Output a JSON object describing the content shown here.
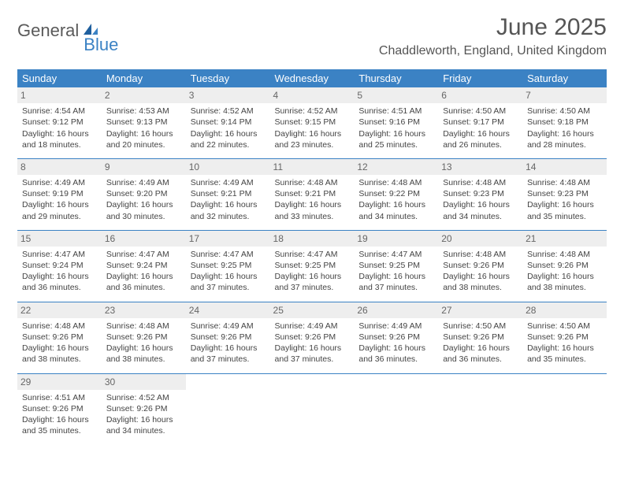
{
  "brand": {
    "general": "General",
    "blue": "Blue"
  },
  "title": "June 2025",
  "location": "Chaddleworth, England, United Kingdom",
  "colors": {
    "header_bg": "#3b82c4",
    "header_text": "#ffffff",
    "daynum_bg": "#eeeeee",
    "border": "#3b82c4",
    "text": "#444444"
  },
  "day_names": [
    "Sunday",
    "Monday",
    "Tuesday",
    "Wednesday",
    "Thursday",
    "Friday",
    "Saturday"
  ],
  "weeks": [
    [
      {
        "n": "1",
        "sr": "Sunrise: 4:54 AM",
        "ss": "Sunset: 9:12 PM",
        "d1": "Daylight: 16 hours",
        "d2": "and 18 minutes."
      },
      {
        "n": "2",
        "sr": "Sunrise: 4:53 AM",
        "ss": "Sunset: 9:13 PM",
        "d1": "Daylight: 16 hours",
        "d2": "and 20 minutes."
      },
      {
        "n": "3",
        "sr": "Sunrise: 4:52 AM",
        "ss": "Sunset: 9:14 PM",
        "d1": "Daylight: 16 hours",
        "d2": "and 22 minutes."
      },
      {
        "n": "4",
        "sr": "Sunrise: 4:52 AM",
        "ss": "Sunset: 9:15 PM",
        "d1": "Daylight: 16 hours",
        "d2": "and 23 minutes."
      },
      {
        "n": "5",
        "sr": "Sunrise: 4:51 AM",
        "ss": "Sunset: 9:16 PM",
        "d1": "Daylight: 16 hours",
        "d2": "and 25 minutes."
      },
      {
        "n": "6",
        "sr": "Sunrise: 4:50 AM",
        "ss": "Sunset: 9:17 PM",
        "d1": "Daylight: 16 hours",
        "d2": "and 26 minutes."
      },
      {
        "n": "7",
        "sr": "Sunrise: 4:50 AM",
        "ss": "Sunset: 9:18 PM",
        "d1": "Daylight: 16 hours",
        "d2": "and 28 minutes."
      }
    ],
    [
      {
        "n": "8",
        "sr": "Sunrise: 4:49 AM",
        "ss": "Sunset: 9:19 PM",
        "d1": "Daylight: 16 hours",
        "d2": "and 29 minutes."
      },
      {
        "n": "9",
        "sr": "Sunrise: 4:49 AM",
        "ss": "Sunset: 9:20 PM",
        "d1": "Daylight: 16 hours",
        "d2": "and 30 minutes."
      },
      {
        "n": "10",
        "sr": "Sunrise: 4:49 AM",
        "ss": "Sunset: 9:21 PM",
        "d1": "Daylight: 16 hours",
        "d2": "and 32 minutes."
      },
      {
        "n": "11",
        "sr": "Sunrise: 4:48 AM",
        "ss": "Sunset: 9:21 PM",
        "d1": "Daylight: 16 hours",
        "d2": "and 33 minutes."
      },
      {
        "n": "12",
        "sr": "Sunrise: 4:48 AM",
        "ss": "Sunset: 9:22 PM",
        "d1": "Daylight: 16 hours",
        "d2": "and 34 minutes."
      },
      {
        "n": "13",
        "sr": "Sunrise: 4:48 AM",
        "ss": "Sunset: 9:23 PM",
        "d1": "Daylight: 16 hours",
        "d2": "and 34 minutes."
      },
      {
        "n": "14",
        "sr": "Sunrise: 4:48 AM",
        "ss": "Sunset: 9:23 PM",
        "d1": "Daylight: 16 hours",
        "d2": "and 35 minutes."
      }
    ],
    [
      {
        "n": "15",
        "sr": "Sunrise: 4:47 AM",
        "ss": "Sunset: 9:24 PM",
        "d1": "Daylight: 16 hours",
        "d2": "and 36 minutes."
      },
      {
        "n": "16",
        "sr": "Sunrise: 4:47 AM",
        "ss": "Sunset: 9:24 PM",
        "d1": "Daylight: 16 hours",
        "d2": "and 36 minutes."
      },
      {
        "n": "17",
        "sr": "Sunrise: 4:47 AM",
        "ss": "Sunset: 9:25 PM",
        "d1": "Daylight: 16 hours",
        "d2": "and 37 minutes."
      },
      {
        "n": "18",
        "sr": "Sunrise: 4:47 AM",
        "ss": "Sunset: 9:25 PM",
        "d1": "Daylight: 16 hours",
        "d2": "and 37 minutes."
      },
      {
        "n": "19",
        "sr": "Sunrise: 4:47 AM",
        "ss": "Sunset: 9:25 PM",
        "d1": "Daylight: 16 hours",
        "d2": "and 37 minutes."
      },
      {
        "n": "20",
        "sr": "Sunrise: 4:48 AM",
        "ss": "Sunset: 9:26 PM",
        "d1": "Daylight: 16 hours",
        "d2": "and 38 minutes."
      },
      {
        "n": "21",
        "sr": "Sunrise: 4:48 AM",
        "ss": "Sunset: 9:26 PM",
        "d1": "Daylight: 16 hours",
        "d2": "and 38 minutes."
      }
    ],
    [
      {
        "n": "22",
        "sr": "Sunrise: 4:48 AM",
        "ss": "Sunset: 9:26 PM",
        "d1": "Daylight: 16 hours",
        "d2": "and 38 minutes."
      },
      {
        "n": "23",
        "sr": "Sunrise: 4:48 AM",
        "ss": "Sunset: 9:26 PM",
        "d1": "Daylight: 16 hours",
        "d2": "and 38 minutes."
      },
      {
        "n": "24",
        "sr": "Sunrise: 4:49 AM",
        "ss": "Sunset: 9:26 PM",
        "d1": "Daylight: 16 hours",
        "d2": "and 37 minutes."
      },
      {
        "n": "25",
        "sr": "Sunrise: 4:49 AM",
        "ss": "Sunset: 9:26 PM",
        "d1": "Daylight: 16 hours",
        "d2": "and 37 minutes."
      },
      {
        "n": "26",
        "sr": "Sunrise: 4:49 AM",
        "ss": "Sunset: 9:26 PM",
        "d1": "Daylight: 16 hours",
        "d2": "and 36 minutes."
      },
      {
        "n": "27",
        "sr": "Sunrise: 4:50 AM",
        "ss": "Sunset: 9:26 PM",
        "d1": "Daylight: 16 hours",
        "d2": "and 36 minutes."
      },
      {
        "n": "28",
        "sr": "Sunrise: 4:50 AM",
        "ss": "Sunset: 9:26 PM",
        "d1": "Daylight: 16 hours",
        "d2": "and 35 minutes."
      }
    ],
    [
      {
        "n": "29",
        "sr": "Sunrise: 4:51 AM",
        "ss": "Sunset: 9:26 PM",
        "d1": "Daylight: 16 hours",
        "d2": "and 35 minutes."
      },
      {
        "n": "30",
        "sr": "Sunrise: 4:52 AM",
        "ss": "Sunset: 9:26 PM",
        "d1": "Daylight: 16 hours",
        "d2": "and 34 minutes."
      },
      {
        "empty": true
      },
      {
        "empty": true
      },
      {
        "empty": true
      },
      {
        "empty": true
      },
      {
        "empty": true
      }
    ]
  ]
}
